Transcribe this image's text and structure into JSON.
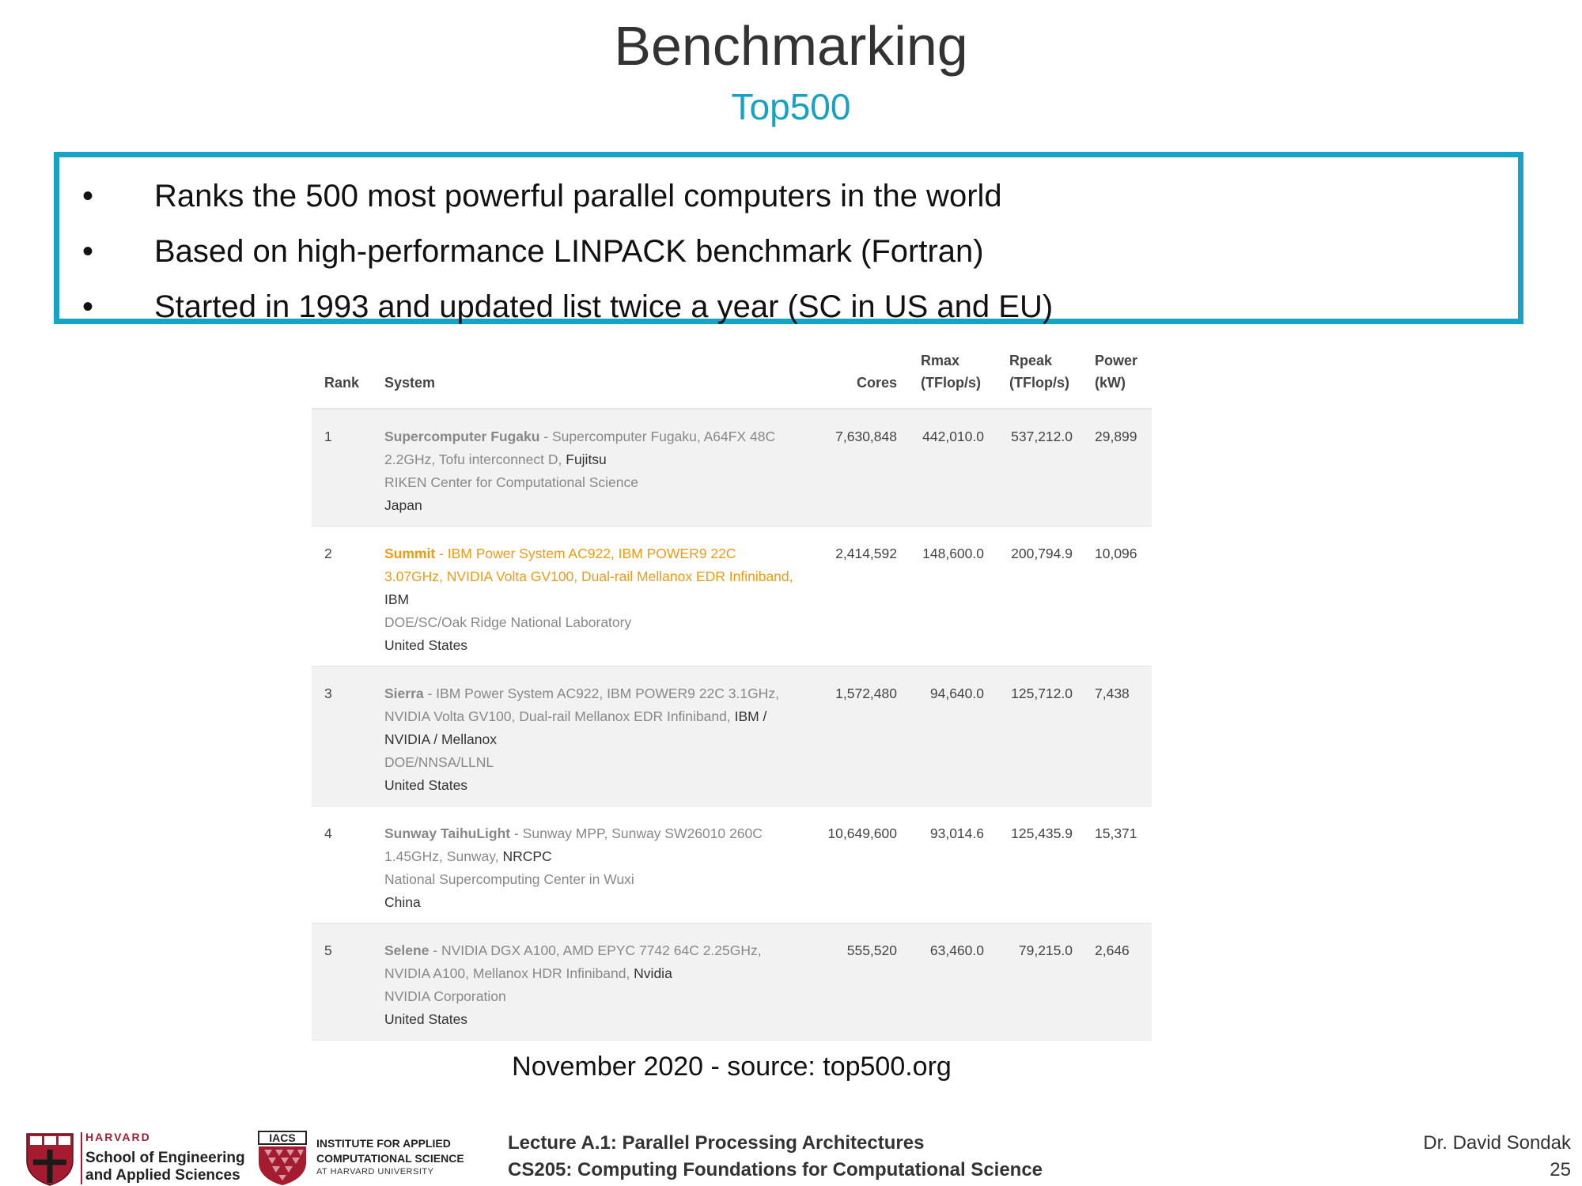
{
  "slide": {
    "title": "Benchmarking",
    "subtitle": "Top500",
    "bullets": [
      "Ranks the 500 most powerful parallel computers in the world",
      "Based on high-performance LINPACK benchmark (Fortran)",
      "Started in 1993 and updated list twice a year (SC in US and EU)"
    ],
    "bullet_symbol": "•"
  },
  "table": {
    "headers": {
      "rank": "Rank",
      "system": "System",
      "cores": "Cores",
      "rmax_1": "Rmax",
      "rmax_2": "(TFlop/s)",
      "rpeak_1": "Rpeak",
      "rpeak_2": "(TFlop/s)",
      "power_1": "Power",
      "power_2": "(kW)"
    },
    "rows": [
      {
        "rank": "1",
        "name": "Supercomputer Fugaku",
        "desc": " - Supercomputer Fugaku, A64FX 48C 2.2GHz, Tofu interconnect D, ",
        "vendor": "Fujitsu",
        "site": "RIKEN Center for Computational Science",
        "country": "Japan",
        "cores": "7,630,848",
        "rmax": "442,010.0",
        "rpeak": "537,212.0",
        "power": "29,899"
      },
      {
        "rank": "2",
        "name": "Summit",
        "desc": " - IBM Power System AC922, IBM POWER9 22C 3.07GHz, NVIDIA Volta GV100, Dual-rail Mellanox EDR Infiniband, ",
        "vendor": "IBM",
        "site": "DOE/SC/Oak Ridge National Laboratory",
        "country": "United States",
        "cores": "2,414,592",
        "rmax": "148,600.0",
        "rpeak": "200,794.9",
        "power": "10,096"
      },
      {
        "rank": "3",
        "name": "Sierra",
        "desc": " - IBM Power System AC922, IBM POWER9 22C 3.1GHz, NVIDIA Volta GV100, Dual-rail Mellanox EDR Infiniband, ",
        "vendor": "IBM / NVIDIA / Mellanox",
        "site": "DOE/NNSA/LLNL",
        "country": "United States",
        "cores": "1,572,480",
        "rmax": "94,640.0",
        "rpeak": "125,712.0",
        "power": "7,438"
      },
      {
        "rank": "4",
        "name": "Sunway TaihuLight",
        "desc": " - Sunway MPP, Sunway SW26010 260C 1.45GHz, Sunway, ",
        "vendor": "NRCPC",
        "site": "National Supercomputing Center in Wuxi",
        "country": "China",
        "cores": "10,649,600",
        "rmax": "93,014.6",
        "rpeak": "125,435.9",
        "power": "15,371"
      },
      {
        "rank": "5",
        "name": "Selene",
        "desc": " - NVIDIA DGX A100, AMD EPYC 7742 64C 2.25GHz, NVIDIA A100, Mellanox HDR Infiniband, ",
        "vendor": "Nvidia",
        "site": "NVIDIA Corporation",
        "country": "United States",
        "cores": "555,520",
        "rmax": "63,460.0",
        "rpeak": "79,215.0",
        "power": "2,646"
      }
    ]
  },
  "source": "November 2020 - source: top500.org",
  "footer": {
    "harvard_top": "HARVARD",
    "harvard_line1": "School of Engineering",
    "harvard_line2": "and Applied Sciences",
    "iacs_badge": "IACS",
    "iacs_line1": "INSTITUTE FOR APPLIED",
    "iacs_line2": "COMPUTATIONAL SCIENCE",
    "iacs_line3": "AT HARVARD UNIVERSITY",
    "lecture_line1": "Lecture A.1: Parallel Processing Architectures",
    "lecture_line2": "CS205: Computing Foundations for Computational Science",
    "author": "Dr. David Sondak",
    "page": "25"
  },
  "colors": {
    "accent": "#16a3c6",
    "highlight_row": "#f09a12",
    "harvard_crimson": "#a51c30"
  }
}
